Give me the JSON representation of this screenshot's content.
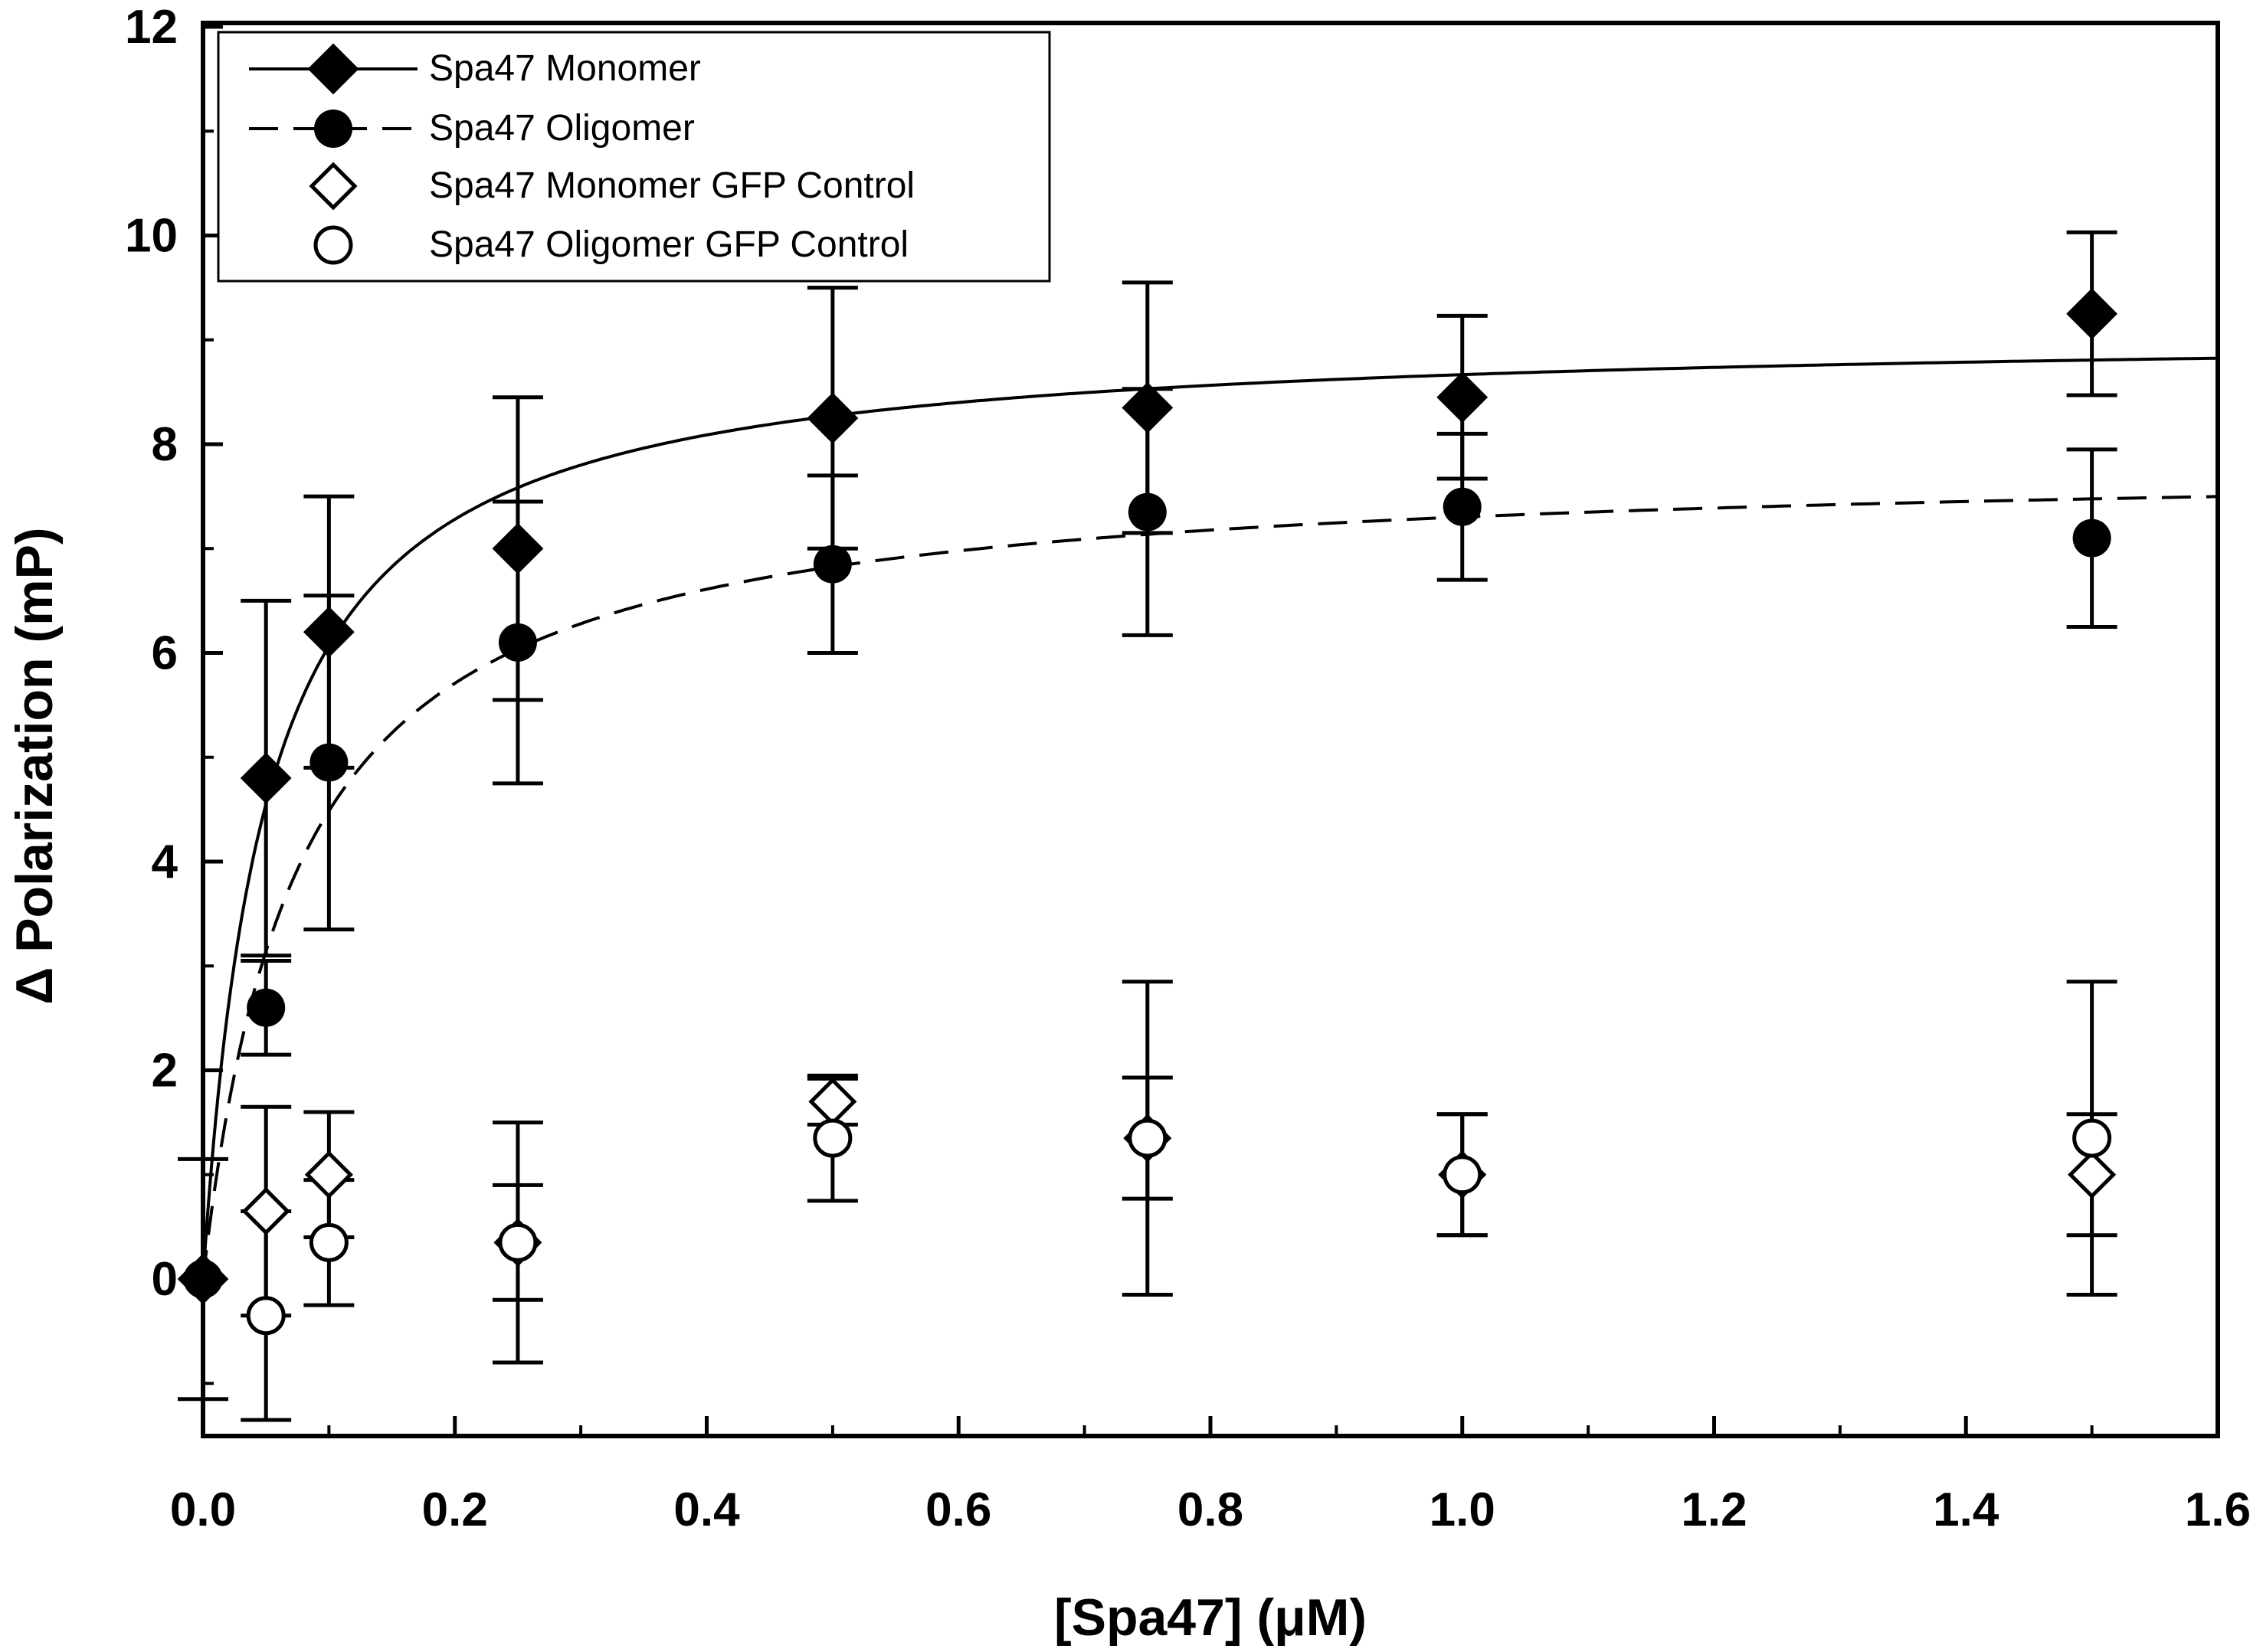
{
  "chart_data": {
    "type": "scatter",
    "title": "",
    "xlabel": "[Spa47] (μM)",
    "ylabel": "Δ Polarization (mP)",
    "xlim": [
      0,
      1.6
    ],
    "ylim": [
      -1.5,
      12
    ],
    "x_ticks": [
      "0.0",
      "0.2",
      "0.4",
      "0.6",
      "0.8",
      "1.0",
      "1.2",
      "1.4",
      "1.6"
    ],
    "y_ticks": [
      "0",
      "2",
      "4",
      "6",
      "8",
      "10",
      "12"
    ],
    "legend_position": "top-left",
    "series": [
      {
        "name": "Spa47 Monomer",
        "marker": "diamond-filled",
        "line": "solid",
        "fit": {
          "model": "hyperbolic",
          "bmax": 9.1,
          "kd": 0.05
        },
        "points": [
          {
            "x": 0.0,
            "y": 0.0,
            "err": 0.0
          },
          {
            "x": 0.05,
            "y": 4.8,
            "err": 1.7
          },
          {
            "x": 0.1,
            "y": 6.2,
            "err": 1.3
          },
          {
            "x": 0.25,
            "y": 7.0,
            "err": 1.45
          },
          {
            "x": 0.5,
            "y": 8.25,
            "err": 1.25
          },
          {
            "x": 0.75,
            "y": 8.35,
            "err": 1.2
          },
          {
            "x": 1.0,
            "y": 8.45,
            "err": 0.78
          },
          {
            "x": 1.5,
            "y": 9.25,
            "err": 0.78
          }
        ]
      },
      {
        "name": "Spa47 Oligomer",
        "marker": "circle-filled",
        "line": "dashed",
        "fit": {
          "model": "hyperbolic",
          "bmax": 7.85,
          "kd": 0.075
        },
        "points": [
          {
            "x": 0.0,
            "y": 0.0,
            "err": 0.0
          },
          {
            "x": 0.05,
            "y": 2.6,
            "err": 0.45
          },
          {
            "x": 0.1,
            "y": 4.95,
            "err": 1.6
          },
          {
            "x": 0.25,
            "y": 6.1,
            "err": 1.35
          },
          {
            "x": 0.5,
            "y": 6.85,
            "err": 0.85
          },
          {
            "x": 0.75,
            "y": 7.35,
            "err": 1.18
          },
          {
            "x": 1.0,
            "y": 7.4,
            "err": 0.7
          },
          {
            "x": 1.5,
            "y": 7.1,
            "err": 0.85
          }
        ]
      },
      {
        "name": "Spa47 Monomer GFP Control",
        "marker": "diamond-open",
        "line": "none",
        "points": [
          {
            "x": 0.0,
            "y": 0.0,
            "err": 0.0
          },
          {
            "x": 0.05,
            "y": 0.65,
            "err": 1.0
          },
          {
            "x": 0.1,
            "y": 1.0,
            "err": 0.6
          },
          {
            "x": 0.25,
            "y": 0.35,
            "err": 0.55
          },
          {
            "x": 0.5,
            "y": 1.7,
            "err": 0.22
          },
          {
            "x": 0.75,
            "y": 1.35,
            "err": 0.58
          },
          {
            "x": 1.0,
            "y": 1.0,
            "err": 0.58
          },
          {
            "x": 1.5,
            "y": 1.0,
            "err": 0.58
          }
        ]
      },
      {
        "name": "Spa47 Oligomer GFP Control",
        "marker": "circle-open",
        "line": "none",
        "points": [
          {
            "x": 0.0,
            "y": 0.0,
            "err": 1.15
          },
          {
            "x": 0.05,
            "y": -0.35,
            "err": 1.0
          },
          {
            "x": 0.1,
            "y": 0.35,
            "err": 0.6
          },
          {
            "x": 0.25,
            "y": 0.35,
            "err": 1.15
          },
          {
            "x": 0.5,
            "y": 1.35,
            "err": 0.6
          },
          {
            "x": 0.75,
            "y": 1.35,
            "err": 1.5
          },
          {
            "x": 1.0,
            "y": 1.0,
            "err": 0.58
          },
          {
            "x": 1.5,
            "y": 1.35,
            "err": 1.5
          }
        ]
      }
    ]
  },
  "colors": {
    "ink": "#000000",
    "background": "#ffffff"
  }
}
